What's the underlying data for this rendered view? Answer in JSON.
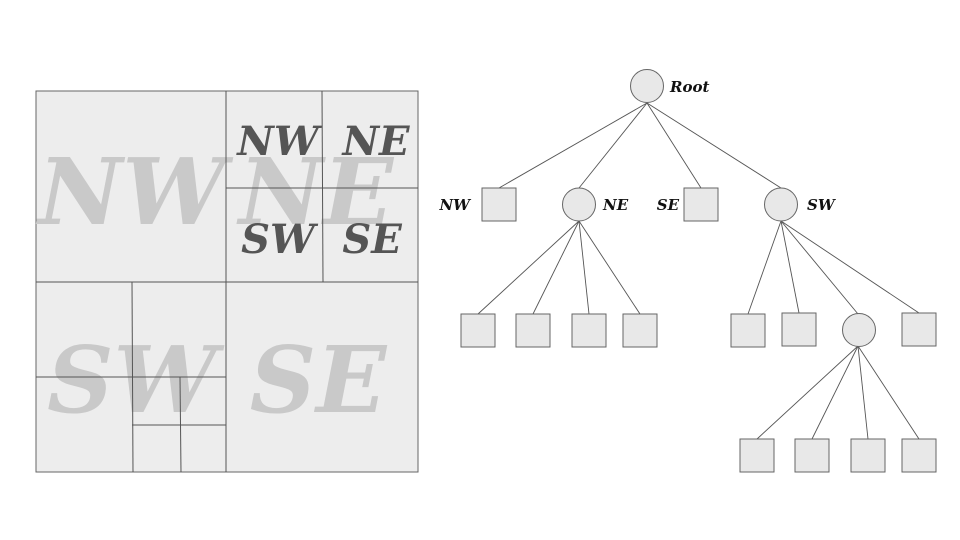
{
  "quadtree_map": {
    "big_labels": [
      "NW",
      "NE",
      "SW",
      "SE"
    ],
    "ne_sub_labels": [
      "NW",
      "NE",
      "SW",
      "SE"
    ]
  },
  "tree": {
    "root_label": "Root",
    "level1_labels": [
      "NW",
      "NE",
      "SE",
      "SW"
    ]
  }
}
